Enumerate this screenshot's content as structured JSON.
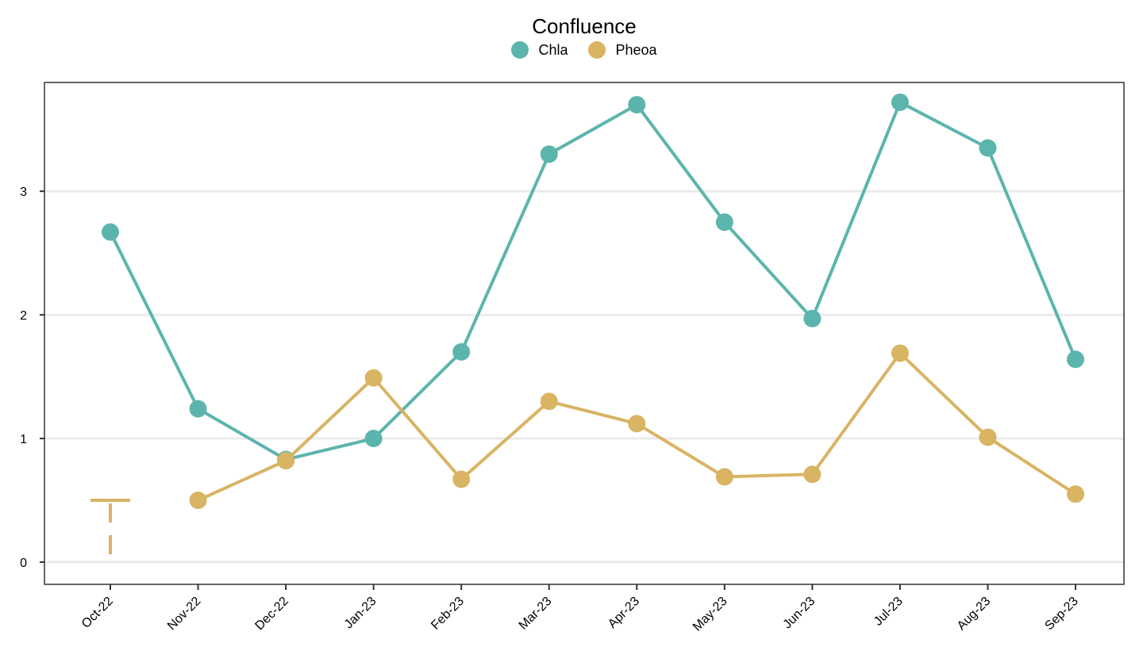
{
  "chart_data": {
    "type": "line",
    "title": "",
    "xlabel": "",
    "ylabel": "",
    "legend_title": "Confluence",
    "legend_position": "top",
    "categories": [
      "Oct-22",
      "Nov-22",
      "Dec-22",
      "Jan-23",
      "Feb-23",
      "Mar-23",
      "Apr-23",
      "May-23",
      "Jun-23",
      "Jul-23",
      "Aug-23",
      "Sep-23"
    ],
    "yticks": [
      0,
      1,
      2,
      3
    ],
    "ylim": [
      -0.18,
      3.88
    ],
    "grid": "horizontal",
    "series": [
      {
        "name": "Chla",
        "color": "#5cb5ac",
        "values": [
          2.67,
          1.24,
          0.83,
          1.0,
          1.7,
          3.3,
          3.7,
          2.75,
          1.97,
          3.72,
          3.35,
          1.64
        ]
      },
      {
        "name": "Pheoa",
        "color": "#d8b463",
        "values": [
          null,
          0.5,
          0.82,
          1.49,
          0.67,
          1.3,
          1.12,
          0.69,
          0.71,
          1.69,
          1.01,
          0.55
        ]
      }
    ],
    "annotation": {
      "category": "Oct-22",
      "color": "#d8b463",
      "ymin": 0.0,
      "ymax": 0.5
    }
  }
}
